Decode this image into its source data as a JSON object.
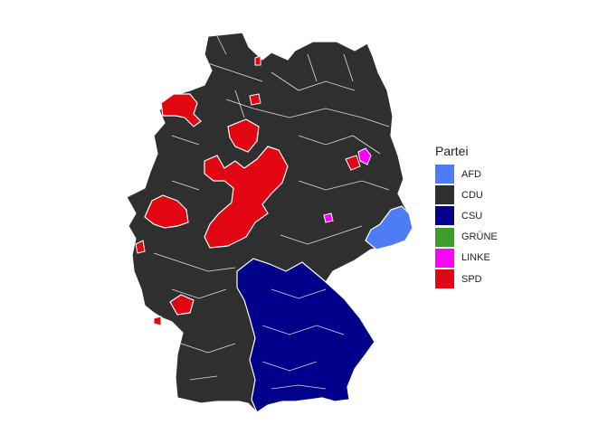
{
  "legend": {
    "title": "Partei",
    "items": [
      {
        "label": "AFD",
        "color": "#4e7cf5"
      },
      {
        "label": "CDU",
        "color": "#2f2f2f"
      },
      {
        "label": "CSU",
        "color": "#00008b"
      },
      {
        "label": "GRÜNE",
        "color": "#3f9b2a"
      },
      {
        "label": "LINKE",
        "color": "#ff00ff"
      },
      {
        "label": "SPD",
        "color": "#e20613"
      }
    ]
  }
}
